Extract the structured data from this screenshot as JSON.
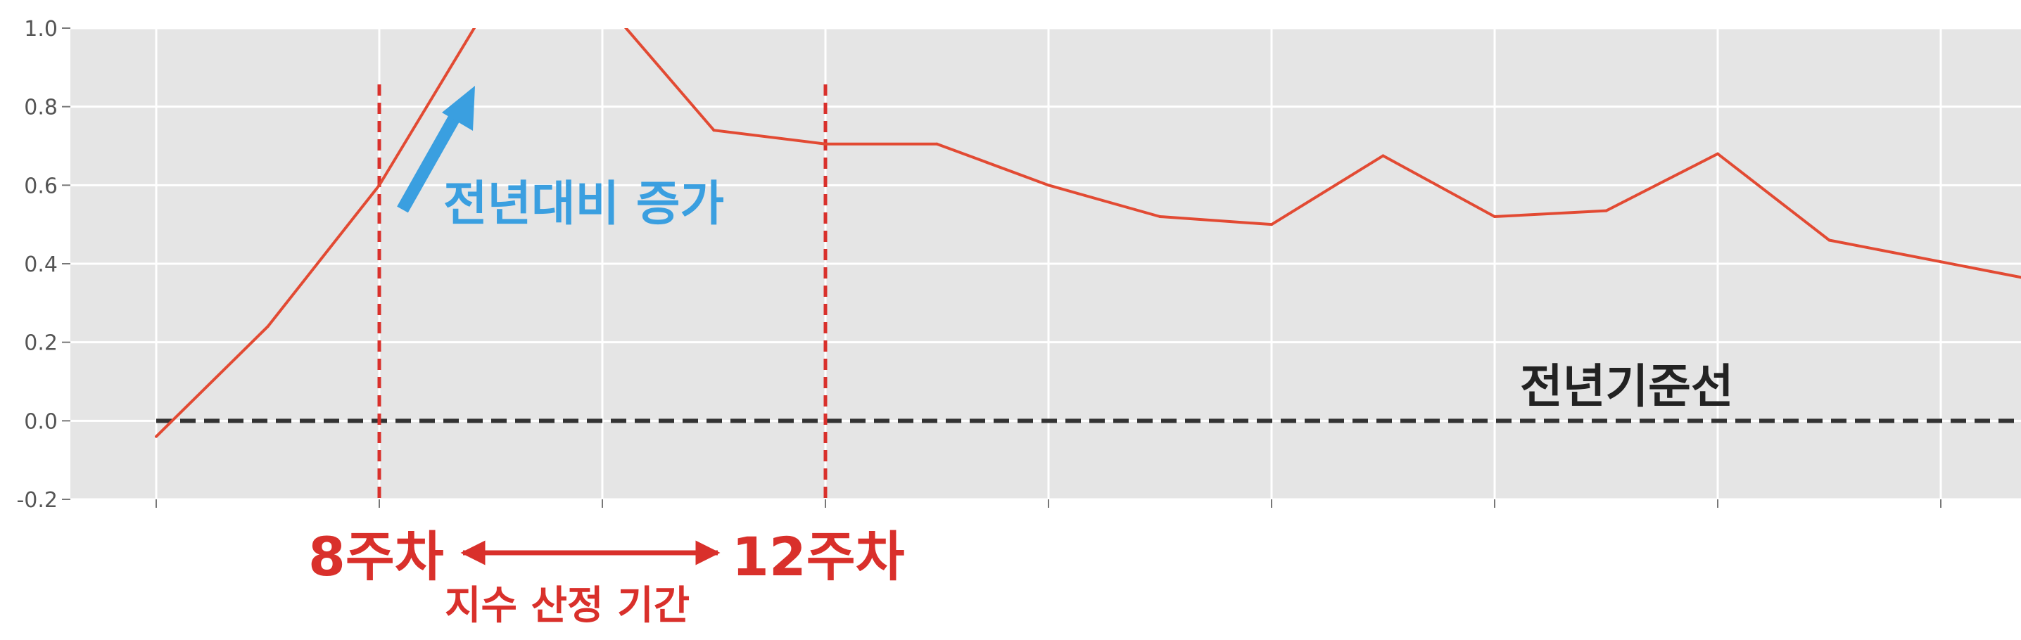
{
  "chart_data": {
    "type": "line",
    "title": "",
    "xlabel": "",
    "ylabel": "",
    "ylim": [
      -0.2,
      1.0
    ],
    "grid": true,
    "yticks": [
      "-0.2",
      "0.0",
      "0.2",
      "0.4",
      "0.6",
      "0.8",
      "1.0"
    ],
    "series": [
      {
        "values": [
          -0.04,
          0.24,
          0.6,
          1.07,
          1.07,
          0.74,
          0.705,
          0.705,
          0.6,
          0.52,
          0.5,
          0.675,
          0.52,
          0.535,
          0.68,
          0.46,
          0.405,
          0.35
        ],
        "color": "#e24a33"
      }
    ],
    "baseline": {
      "value": 0.0,
      "color": "#333333"
    },
    "markers": [
      {
        "index": 2,
        "color": "#d9302b"
      },
      {
        "index": 6,
        "color": "#d9302b"
      }
    ],
    "colors": {
      "plot_bg": "#e5e5e5",
      "grid": "#ffffff",
      "line": "#e24a33",
      "annotation_blue": "#3a9fe0",
      "annotation_red": "#d9302b",
      "annotation_black": "#222222"
    }
  },
  "annotations": {
    "increase_label": "전년대비 증가",
    "baseline_label": "전년기준선",
    "start_label": "8주차",
    "end_label": "12주차",
    "period_label": "지수 산정 기간"
  }
}
